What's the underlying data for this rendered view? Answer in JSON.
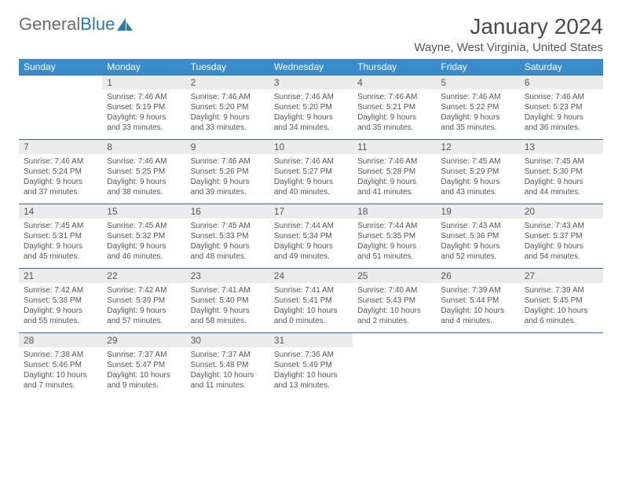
{
  "brand": {
    "part1": "General",
    "part2": "Blue"
  },
  "title": "January 2024",
  "location": "Wayne, West Virginia, United States",
  "colors": {
    "header_bg": "#3a8bc9",
    "header_text": "#ffffff",
    "daynum_bg": "#ececec",
    "border": "#2a6fa3",
    "text": "#555555",
    "brand_gray": "#6b6b6b",
    "brand_blue": "#2a7ab0"
  },
  "weekdays": [
    "Sunday",
    "Monday",
    "Tuesday",
    "Wednesday",
    "Thursday",
    "Friday",
    "Saturday"
  ],
  "days": [
    {
      "date": "1",
      "sunrise": "7:46 AM",
      "sunset": "5:19 PM",
      "daylight": "9 hours and 33 minutes."
    },
    {
      "date": "2",
      "sunrise": "7:46 AM",
      "sunset": "5:20 PM",
      "daylight": "9 hours and 33 minutes."
    },
    {
      "date": "3",
      "sunrise": "7:46 AM",
      "sunset": "5:20 PM",
      "daylight": "9 hours and 34 minutes."
    },
    {
      "date": "4",
      "sunrise": "7:46 AM",
      "sunset": "5:21 PM",
      "daylight": "9 hours and 35 minutes."
    },
    {
      "date": "5",
      "sunrise": "7:46 AM",
      "sunset": "5:22 PM",
      "daylight": "9 hours and 35 minutes."
    },
    {
      "date": "6",
      "sunrise": "7:46 AM",
      "sunset": "5:23 PM",
      "daylight": "9 hours and 36 minutes."
    },
    {
      "date": "7",
      "sunrise": "7:46 AM",
      "sunset": "5:24 PM",
      "daylight": "9 hours and 37 minutes."
    },
    {
      "date": "8",
      "sunrise": "7:46 AM",
      "sunset": "5:25 PM",
      "daylight": "9 hours and 38 minutes."
    },
    {
      "date": "9",
      "sunrise": "7:46 AM",
      "sunset": "5:26 PM",
      "daylight": "9 hours and 39 minutes."
    },
    {
      "date": "10",
      "sunrise": "7:46 AM",
      "sunset": "5:27 PM",
      "daylight": "9 hours and 40 minutes."
    },
    {
      "date": "11",
      "sunrise": "7:46 AM",
      "sunset": "5:28 PM",
      "daylight": "9 hours and 41 minutes."
    },
    {
      "date": "12",
      "sunrise": "7:45 AM",
      "sunset": "5:29 PM",
      "daylight": "9 hours and 43 minutes."
    },
    {
      "date": "13",
      "sunrise": "7:45 AM",
      "sunset": "5:30 PM",
      "daylight": "9 hours and 44 minutes."
    },
    {
      "date": "14",
      "sunrise": "7:45 AM",
      "sunset": "5:31 PM",
      "daylight": "9 hours and 45 minutes."
    },
    {
      "date": "15",
      "sunrise": "7:45 AM",
      "sunset": "5:32 PM",
      "daylight": "9 hours and 46 minutes."
    },
    {
      "date": "16",
      "sunrise": "7:45 AM",
      "sunset": "5:33 PM",
      "daylight": "9 hours and 48 minutes."
    },
    {
      "date": "17",
      "sunrise": "7:44 AM",
      "sunset": "5:34 PM",
      "daylight": "9 hours and 49 minutes."
    },
    {
      "date": "18",
      "sunrise": "7:44 AM",
      "sunset": "5:35 PM",
      "daylight": "9 hours and 51 minutes."
    },
    {
      "date": "19",
      "sunrise": "7:43 AM",
      "sunset": "5:36 PM",
      "daylight": "9 hours and 52 minutes."
    },
    {
      "date": "20",
      "sunrise": "7:43 AM",
      "sunset": "5:37 PM",
      "daylight": "9 hours and 54 minutes."
    },
    {
      "date": "21",
      "sunrise": "7:42 AM",
      "sunset": "5:38 PM",
      "daylight": "9 hours and 55 minutes."
    },
    {
      "date": "22",
      "sunrise": "7:42 AM",
      "sunset": "5:39 PM",
      "daylight": "9 hours and 57 minutes."
    },
    {
      "date": "23",
      "sunrise": "7:41 AM",
      "sunset": "5:40 PM",
      "daylight": "9 hours and 58 minutes."
    },
    {
      "date": "24",
      "sunrise": "7:41 AM",
      "sunset": "5:41 PM",
      "daylight": "10 hours and 0 minutes."
    },
    {
      "date": "25",
      "sunrise": "7:40 AM",
      "sunset": "5:43 PM",
      "daylight": "10 hours and 2 minutes."
    },
    {
      "date": "26",
      "sunrise": "7:39 AM",
      "sunset": "5:44 PM",
      "daylight": "10 hours and 4 minutes."
    },
    {
      "date": "27",
      "sunrise": "7:39 AM",
      "sunset": "5:45 PM",
      "daylight": "10 hours and 6 minutes."
    },
    {
      "date": "28",
      "sunrise": "7:38 AM",
      "sunset": "5:46 PM",
      "daylight": "10 hours and 7 minutes."
    },
    {
      "date": "29",
      "sunrise": "7:37 AM",
      "sunset": "5:47 PM",
      "daylight": "10 hours and 9 minutes."
    },
    {
      "date": "30",
      "sunrise": "7:37 AM",
      "sunset": "5:48 PM",
      "daylight": "10 hours and 11 minutes."
    },
    {
      "date": "31",
      "sunrise": "7:36 AM",
      "sunset": "5:49 PM",
      "daylight": "10 hours and 13 minutes."
    }
  ],
  "start_weekday": 1,
  "labels": {
    "sunrise": "Sunrise:",
    "sunset": "Sunset:",
    "daylight": "Daylight:"
  }
}
